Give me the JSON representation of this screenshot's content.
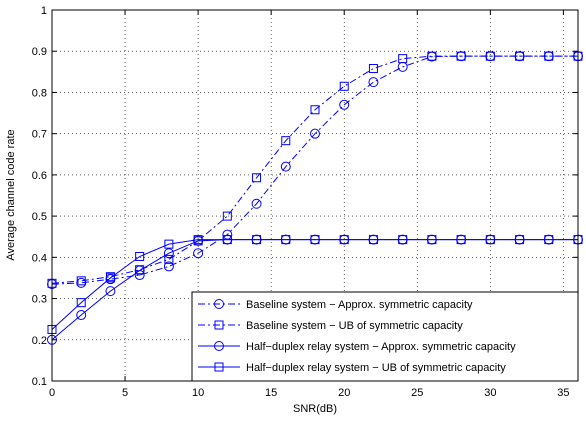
{
  "chart_data": {
    "type": "line",
    "title": "",
    "xlabel": "SNR(dB)",
    "ylabel": "Average channel code rate",
    "xlim": [
      0,
      36
    ],
    "ylim": [
      0.1,
      1
    ],
    "x_ticks": [
      0,
      5,
      10,
      15,
      20,
      25,
      30,
      35
    ],
    "y_ticks": [
      0.1,
      0.2,
      0.3,
      0.4,
      0.5,
      0.6,
      0.7,
      0.8,
      0.9,
      1
    ],
    "x_tick_labels": [
      "0",
      "5",
      "10",
      "15",
      "20",
      "25",
      "30",
      "35"
    ],
    "y_tick_labels": [
      "0.1",
      "0.2",
      "0.3",
      "0.4",
      "0.5",
      "0.6",
      "0.7",
      "0.8",
      "0.9",
      "1"
    ],
    "grid": true,
    "legend_position": "bottom-right",
    "line_color": "#0000ff",
    "series": [
      {
        "name": "Baseline system − Approx. symmetric capacity",
        "style": "dashdot",
        "marker": "circle",
        "x": [
          0,
          2,
          4,
          6,
          8,
          10,
          12,
          14,
          16,
          18,
          20,
          22,
          24,
          26,
          28,
          30,
          32,
          34,
          36
        ],
        "y": [
          0.335,
          0.338,
          0.347,
          0.357,
          0.378,
          0.41,
          0.455,
          0.53,
          0.62,
          0.7,
          0.77,
          0.825,
          0.862,
          0.887,
          0.888,
          0.888,
          0.888,
          0.888,
          0.888
        ]
      },
      {
        "name": "Baseline system − UB of symmetric capacity",
        "style": "dashdot",
        "marker": "square",
        "x": [
          0,
          2,
          4,
          6,
          8,
          10,
          12,
          14,
          16,
          18,
          20,
          22,
          24,
          26,
          28,
          30,
          32,
          34,
          36
        ],
        "y": [
          0.337,
          0.343,
          0.353,
          0.37,
          0.395,
          0.44,
          0.5,
          0.593,
          0.683,
          0.758,
          0.815,
          0.858,
          0.882,
          0.888,
          0.888,
          0.888,
          0.888,
          0.888,
          0.888
        ]
      },
      {
        "name": "Half−duplex relay system − Approx. symmetric capacity",
        "style": "solid",
        "marker": "circle",
        "x": [
          0,
          2,
          4,
          6,
          8,
          10,
          12,
          14,
          16,
          18,
          20,
          22,
          24,
          26,
          28,
          30,
          32,
          34,
          36
        ],
        "y": [
          0.2,
          0.26,
          0.318,
          0.368,
          0.41,
          0.44,
          0.443,
          0.443,
          0.443,
          0.443,
          0.443,
          0.443,
          0.443,
          0.443,
          0.443,
          0.443,
          0.443,
          0.443,
          0.443
        ]
      },
      {
        "name": "Half−duplex relay system − UB of symmetric capacity",
        "style": "solid",
        "marker": "square",
        "x": [
          0,
          2,
          4,
          6,
          8,
          10,
          12,
          14,
          16,
          18,
          20,
          22,
          24,
          26,
          28,
          30,
          32,
          34,
          36
        ],
        "y": [
          0.225,
          0.29,
          0.35,
          0.402,
          0.432,
          0.443,
          0.443,
          0.443,
          0.443,
          0.443,
          0.443,
          0.443,
          0.443,
          0.443,
          0.443,
          0.443,
          0.443,
          0.443,
          0.443
        ]
      }
    ]
  }
}
